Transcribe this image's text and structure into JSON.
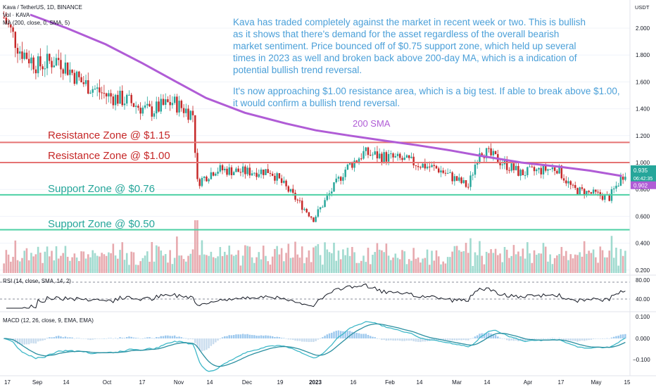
{
  "header": {
    "symbol": "Kava / TetherUS, 1D, BINANCE",
    "indicators": [
      "Vol · KAVA",
      "MA (200, close, 0, SMA, 5)"
    ]
  },
  "price_scale": {
    "unit": "USDT",
    "ticks": [
      {
        "value": 2.0,
        "label": "2.000"
      },
      {
        "value": 1.8,
        "label": "1.800"
      },
      {
        "value": 1.6,
        "label": "1.600"
      },
      {
        "value": 1.4,
        "label": "1.400"
      },
      {
        "value": 1.2,
        "label": "1.200"
      },
      {
        "value": 1.0,
        "label": "1.000"
      },
      {
        "value": 0.8,
        "label": "0.800"
      },
      {
        "value": 0.6,
        "label": "0.600"
      },
      {
        "value": 0.4,
        "label": "0.400"
      },
      {
        "value": 0.2,
        "label": "0.200"
      }
    ],
    "last_price": 0.935,
    "last_price_label": "0.935",
    "countdown": "06:42:35",
    "ma_label": "0.902",
    "ma_value": 0.902
  },
  "zones": [
    {
      "kind": "resistance",
      "label": "Resistance Zone @ $1.15",
      "price": 1.15,
      "color": "#e57373"
    },
    {
      "kind": "resistance",
      "label": "Resistance Zone @ $1.00",
      "price": 1.0,
      "color": "#e57373"
    },
    {
      "kind": "support",
      "label": "Support Zone @ $0.76",
      "price": 0.76,
      "color": "#4dd0a4"
    },
    {
      "kind": "support",
      "label": "Support Zone @ $0.50",
      "price": 0.5,
      "color": "#4dd0a4"
    }
  ],
  "sma_label": "200 SMA",
  "annotation": [
    "Kava has traded completely against the market in recent week or two. This is bullish",
    "as it shows that there's demand for the asset regardless of the overall bearish",
    "market sentiment. Price bounced off of $0.75 support zone, which held up several",
    "times in 2023 as well and broken back above 200-day MA, which is a indication of",
    "potential bullish trend reversal.",
    "",
    "It's now approaching $1.00 resistance area, which is a big test. If able to break above $1.00,",
    "it would confirm a bullish trend reversal."
  ],
  "rsi": {
    "title": "RSI (14, close, SMA, 14, 2)",
    "ticks": [
      {
        "value": 80,
        "label": "80.00"
      },
      {
        "value": 40,
        "label": "40.00"
      }
    ]
  },
  "macd": {
    "title": "MACD (12, 26, close, 9, EMA, EMA)",
    "ticks": [
      {
        "value": 0.1,
        "label": "0.100"
      },
      {
        "value": 0.0,
        "label": "0.000"
      },
      {
        "value": -0.1,
        "label": "−0.100"
      }
    ]
  },
  "time_axis": [
    "17",
    "Sep",
    "14",
    "Oct",
    "17",
    "Nov",
    "14",
    "Dec",
    "19",
    "2023",
    "16",
    "Feb",
    "14",
    "Mar",
    "14",
    "Apr",
    "17",
    "May",
    "15"
  ],
  "colors": {
    "up": "#26a69a",
    "down": "#c62828",
    "sma": "#b05cd6",
    "annotation": "#4a9fd8",
    "rsi": "#131722",
    "macd": "#3fb8c8",
    "signal": "#2a8fa0"
  },
  "chart_data": {
    "type": "candlestick",
    "title": "Kava / TetherUS, 1D, BINANCE",
    "ylabel": "USDT",
    "ylim": [
      0.17,
      2.1
    ],
    "xlim": [
      "2022-08-17",
      "2023-05-17"
    ],
    "sma200": [
      {
        "date": "2022-08-29",
        "value": 2.1
      },
      {
        "date": "2022-09-14",
        "value": 2.0
      },
      {
        "date": "2022-10-01",
        "value": 1.88
      },
      {
        "date": "2022-10-17",
        "value": 1.74
      },
      {
        "date": "2022-11-01",
        "value": 1.6
      },
      {
        "date": "2022-11-14",
        "value": 1.48
      },
      {
        "date": "2022-12-01",
        "value": 1.37
      },
      {
        "date": "2022-12-19",
        "value": 1.29
      },
      {
        "date": "2023-01-01",
        "value": 1.24
      },
      {
        "date": "2023-01-16",
        "value": 1.2
      },
      {
        "date": "2023-02-01",
        "value": 1.16
      },
      {
        "date": "2023-02-14",
        "value": 1.13
      },
      {
        "date": "2023-03-01",
        "value": 1.09
      },
      {
        "date": "2023-03-14",
        "value": 1.05
      },
      {
        "date": "2023-04-01",
        "value": 1.0
      },
      {
        "date": "2023-04-17",
        "value": 0.97
      },
      {
        "date": "2023-05-01",
        "value": 0.94
      },
      {
        "date": "2023-05-15",
        "value": 0.9
      }
    ],
    "price_path": [
      {
        "date": "2022-08-17",
        "close": 2.08
      },
      {
        "date": "2022-08-24",
        "close": 1.84
      },
      {
        "date": "2022-09-01",
        "close": 1.72
      },
      {
        "date": "2022-09-10",
        "close": 1.77
      },
      {
        "date": "2022-09-20",
        "close": 1.6
      },
      {
        "date": "2022-10-01",
        "close": 1.5
      },
      {
        "date": "2022-10-10",
        "close": 1.46
      },
      {
        "date": "2022-10-20",
        "close": 1.38
      },
      {
        "date": "2022-10-30",
        "close": 1.45
      },
      {
        "date": "2022-11-08",
        "close": 1.36
      },
      {
        "date": "2022-11-10",
        "close": 0.85
      },
      {
        "date": "2022-11-18",
        "close": 0.95
      },
      {
        "date": "2022-12-01",
        "close": 0.93
      },
      {
        "date": "2022-12-12",
        "close": 0.94
      },
      {
        "date": "2022-12-18",
        "close": 0.83
      },
      {
        "date": "2022-12-31",
        "close": 0.58
      },
      {
        "date": "2023-01-14",
        "close": 0.95
      },
      {
        "date": "2023-01-22",
        "close": 1.07
      },
      {
        "date": "2023-02-08",
        "close": 1.02
      },
      {
        "date": "2023-02-24",
        "close": 0.95
      },
      {
        "date": "2023-03-09",
        "close": 0.82
      },
      {
        "date": "2023-03-14",
        "close": 1.1
      },
      {
        "date": "2023-04-01",
        "close": 0.92
      },
      {
        "date": "2023-04-17",
        "close": 0.96
      },
      {
        "date": "2023-04-24",
        "close": 0.8
      },
      {
        "date": "2023-05-10",
        "close": 0.74
      },
      {
        "date": "2023-05-17",
        "close": 0.935
      }
    ]
  }
}
